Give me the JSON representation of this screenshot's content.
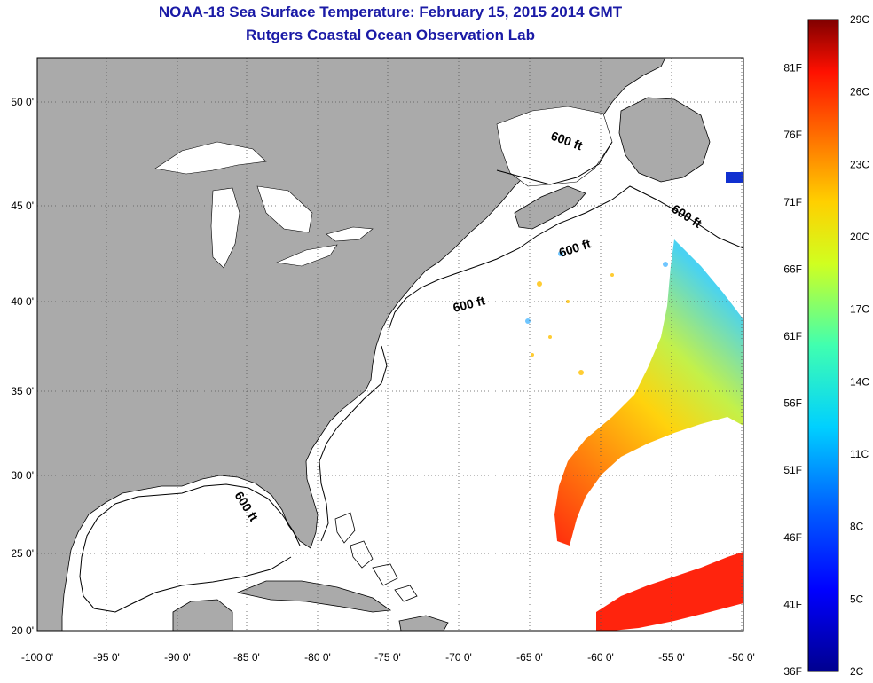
{
  "title_line1": "NOAA-18 Sea Surface Temperature:  February 15, 2015 2014 GMT",
  "title_line2": "Rutgers Coastal Ocean Observation Lab",
  "colors": {
    "land": "#aaaaaa",
    "ocean": "#ffffff",
    "title": "#1a1aa6",
    "colormap": [
      "#00008f",
      "#0000ff",
      "#0080ff",
      "#00ffff",
      "#80ff80",
      "#ffff00",
      "#ff8000",
      "#ff0000",
      "#800000"
    ]
  },
  "map": {
    "lon_labels": [
      "-100 0'",
      "-95 0'",
      "-90 0'",
      "-85 0'",
      "-80 0'",
      "-75 0'",
      "-70 0'",
      "-65 0'",
      "-60 0'",
      "-55 0'",
      "-50 0'"
    ],
    "lat_labels": [
      "20 0'",
      "25 0'",
      "30 0'",
      "35 0'",
      "40 0'",
      "45 0'",
      "50 0'"
    ],
    "contour_label": "600 ft",
    "lon_range": [
      -100,
      -50
    ],
    "lat_range": [
      20,
      52.5
    ]
  },
  "colorbar": {
    "celsius_labels": [
      "2C",
      "5C",
      "8C",
      "11C",
      "14C",
      "17C",
      "20C",
      "23C",
      "26C",
      "29C"
    ],
    "fahrenheit_labels": [
      "36F",
      "41F",
      "46F",
      "51F",
      "56F",
      "61F",
      "66F",
      "71F",
      "76F",
      "81F"
    ],
    "celsius_range": [
      2,
      29
    ]
  }
}
